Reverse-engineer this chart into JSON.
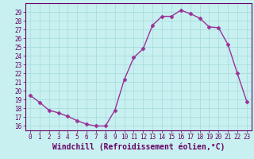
{
  "x": [
    0,
    1,
    2,
    3,
    4,
    5,
    6,
    7,
    8,
    9,
    10,
    11,
    12,
    13,
    14,
    15,
    16,
    17,
    18,
    19,
    20,
    21,
    22,
    23
  ],
  "y": [
    19.5,
    18.7,
    17.8,
    17.5,
    17.1,
    16.6,
    16.2,
    16.0,
    16.0,
    17.8,
    21.3,
    23.8,
    24.8,
    27.5,
    28.5,
    28.5,
    29.2,
    28.8,
    28.3,
    27.3,
    27.2,
    25.3,
    22.0,
    18.8
  ],
  "line_color": "#993399",
  "marker": "D",
  "marker_size": 2.5,
  "bg_color": "#c8f0f0",
  "xlim": [
    -0.5,
    23.5
  ],
  "ylim": [
    15.5,
    30.0
  ],
  "yticks": [
    16,
    17,
    18,
    19,
    20,
    21,
    22,
    23,
    24,
    25,
    26,
    27,
    28,
    29
  ],
  "xticks": [
    0,
    1,
    2,
    3,
    4,
    5,
    6,
    7,
    8,
    9,
    10,
    11,
    12,
    13,
    14,
    15,
    16,
    17,
    18,
    19,
    20,
    21,
    22,
    23
  ],
  "grid_color": "#aadddd",
  "tick_color": "#660066",
  "xlabel": "Windchill (Refroidissement éolien,°C)",
  "xlabel_fontsize": 7,
  "tick_fontsize": 5.5,
  "linewidth": 1.0
}
